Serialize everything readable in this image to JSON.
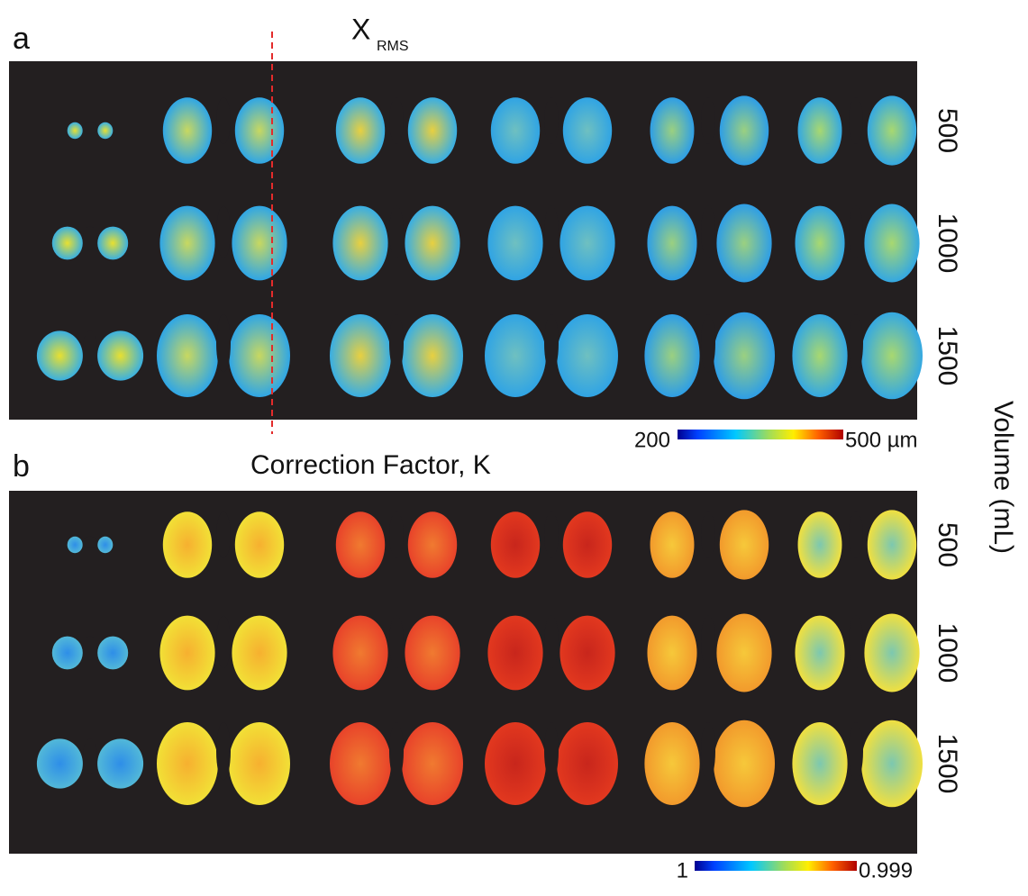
{
  "y_axis_label": "Volume (mL)",
  "panels": [
    {
      "label": "a",
      "title": "X",
      "title_sub": "RMS",
      "row_labels": [
        "500",
        "1000",
        "1500"
      ],
      "colorbar": {
        "min_label": "200",
        "max_label": "500 µm"
      }
    },
    {
      "label": "b",
      "title": "Correction Factor, K",
      "row_labels": [
        "500",
        "1000",
        "1500"
      ],
      "colorbar": {
        "min_label": "1",
        "max_label": "0.999"
      }
    }
  ]
}
